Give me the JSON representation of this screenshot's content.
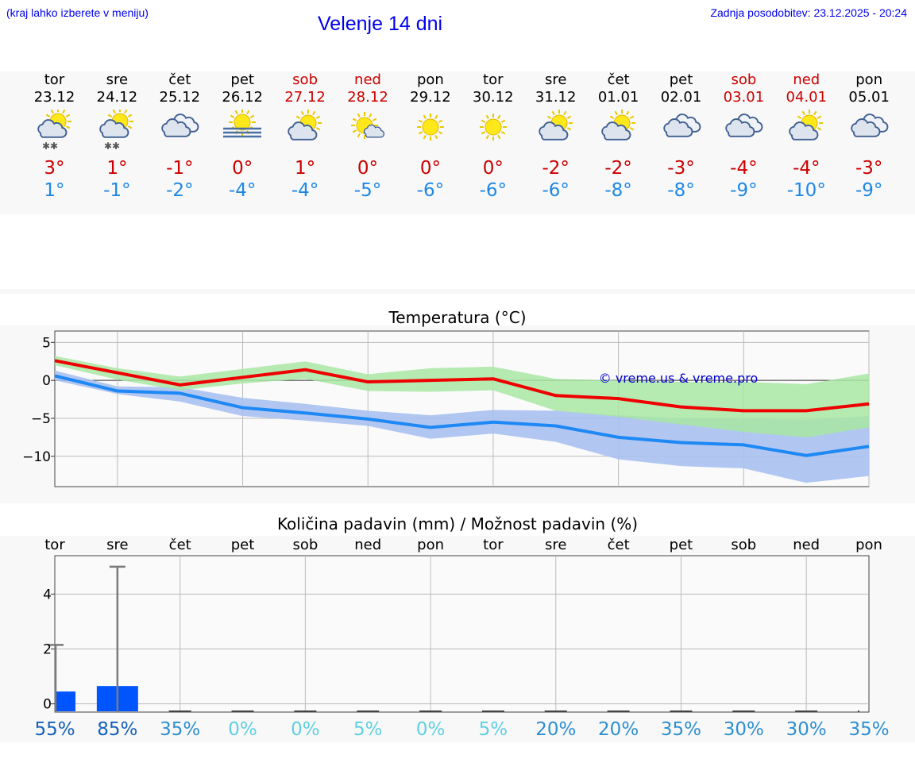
{
  "header": {
    "hint": "(kraj lahko izberete v meniju)",
    "title": "Velenje 14 dni",
    "updated": "Zadnja posodobitev: 23.12.2025 - 20:24"
  },
  "days": [
    {
      "name": "tor",
      "date": "23.12",
      "weekend": false,
      "icon": "partly-cloudy-snow-icon",
      "tmax": "3°",
      "tmin": "1°"
    },
    {
      "name": "sre",
      "date": "24.12",
      "weekend": false,
      "icon": "partly-cloudy-snow-icon",
      "tmax": "1°",
      "tmin": "-1°"
    },
    {
      "name": "čet",
      "date": "25.12",
      "weekend": false,
      "icon": "cloudy-icon",
      "tmax": "-1°",
      "tmin": "-2°"
    },
    {
      "name": "pet",
      "date": "26.12",
      "weekend": false,
      "icon": "sun-fog-icon",
      "tmax": "0°",
      "tmin": "-4°"
    },
    {
      "name": "sob",
      "date": "27.12",
      "weekend": true,
      "icon": "partly-cloudy-icon",
      "tmax": "1°",
      "tmin": "-4°"
    },
    {
      "name": "ned",
      "date": "28.12",
      "weekend": true,
      "icon": "mostly-sunny-icon",
      "tmax": "0°",
      "tmin": "-5°"
    },
    {
      "name": "pon",
      "date": "29.12",
      "weekend": false,
      "icon": "sunny-icon",
      "tmax": "0°",
      "tmin": "-6°"
    },
    {
      "name": "tor",
      "date": "30.12",
      "weekend": false,
      "icon": "sunny-icon",
      "tmax": "0°",
      "tmin": "-6°"
    },
    {
      "name": "sre",
      "date": "31.12",
      "weekend": false,
      "icon": "partly-cloudy-icon",
      "tmax": "-2°",
      "tmin": "-6°"
    },
    {
      "name": "čet",
      "date": "01.01",
      "weekend": false,
      "icon": "partly-cloudy-icon",
      "tmax": "-2°",
      "tmin": "-8°"
    },
    {
      "name": "pet",
      "date": "02.01",
      "weekend": false,
      "icon": "cloudy-icon",
      "tmax": "-3°",
      "tmin": "-8°"
    },
    {
      "name": "sob",
      "date": "03.01",
      "weekend": true,
      "icon": "cloudy-icon",
      "tmax": "-4°",
      "tmin": "-9°"
    },
    {
      "name": "ned",
      "date": "04.01",
      "weekend": true,
      "icon": "partly-cloudy-icon",
      "tmax": "-4°",
      "tmin": "-10°"
    },
    {
      "name": "pon",
      "date": "05.01",
      "weekend": false,
      "icon": "cloudy-icon",
      "tmax": "-3°",
      "tmin": "-9°"
    }
  ],
  "colors": {
    "max_line": "#ee0000",
    "max_band": "#a8e6a3",
    "min_line": "#1e88f5",
    "min_band": "#a9c1f0",
    "bar": "#0055ff",
    "whisker": "#7a7a7a",
    "watermark": "#0000cc"
  },
  "chart_data": [
    {
      "type": "line",
      "title": "Temperatura (°C)",
      "watermark": "© vreme.us & vreme.pro",
      "x": [
        0,
        1,
        2,
        3,
        4,
        5,
        6,
        7,
        8,
        9,
        10,
        11,
        12,
        13
      ],
      "ylim": [
        -14,
        6.5
      ],
      "yticks": [
        5,
        0,
        -5,
        -10
      ],
      "ytick_labels": [
        "5",
        "0",
        "−5",
        "−10"
      ],
      "series": [
        {
          "name": "max",
          "values": [
            2.6,
            1.0,
            -0.6,
            0.4,
            1.4,
            -0.2,
            0.0,
            0.2,
            -2.0,
            -2.4,
            -3.5,
            -4.0,
            -4.0,
            -3.1
          ],
          "band_high": [
            3.2,
            1.6,
            0.5,
            1.5,
            2.5,
            0.8,
            1.6,
            1.8,
            0.2,
            0.0,
            -0.2,
            -0.2,
            -0.5,
            0.9
          ],
          "band_low": [
            2.0,
            0.1,
            -1.3,
            -0.4,
            0.2,
            -1.4,
            -1.5,
            -1.3,
            -4.0,
            -4.8,
            -5.8,
            -6.8,
            -7.5,
            -6.2
          ]
        },
        {
          "name": "min",
          "values": [
            0.6,
            -1.4,
            -1.7,
            -3.6,
            -4.3,
            -5.1,
            -6.2,
            -5.5,
            -6.0,
            -7.5,
            -8.2,
            -8.5,
            -9.9,
            -8.7
          ],
          "band_high": [
            1.3,
            -0.8,
            -0.9,
            -2.3,
            -3.1,
            -4.0,
            -4.6,
            -3.9,
            -4.0,
            -4.6,
            -5.0,
            -5.0,
            -5.2,
            -4.7
          ],
          "band_low": [
            0.0,
            -1.8,
            -2.8,
            -4.7,
            -5.3,
            -6.0,
            -7.7,
            -7.0,
            -8.1,
            -10.4,
            -11.3,
            -11.6,
            -13.5,
            -12.6
          ]
        }
      ]
    },
    {
      "type": "bar",
      "title": "Količina padavin (mm) / Možnost padavin (%)",
      "categories": [
        "tor",
        "sre",
        "čet",
        "pet",
        "sob",
        "ned",
        "pon",
        "tor",
        "sre",
        "čet",
        "pet",
        "sob",
        "ned",
        "pon"
      ],
      "values": [
        0.45,
        0.65,
        0,
        0,
        0,
        0,
        0,
        0,
        0,
        0,
        0,
        0,
        0,
        0
      ],
      "whisker_max": [
        2.15,
        5.0,
        0,
        0,
        0,
        0,
        0,
        0,
        0,
        0,
        0,
        0,
        0,
        0
      ],
      "ylim": [
        -0.3,
        5.4
      ],
      "yticks": [
        0,
        2,
        4
      ],
      "probability": [
        "55%",
        "85%",
        "35%",
        "0%",
        "0%",
        "5%",
        "0%",
        "5%",
        "20%",
        "20%",
        "35%",
        "30%",
        "30%",
        "35%"
      ],
      "probability_values": [
        55,
        85,
        35,
        0,
        0,
        5,
        0,
        5,
        20,
        20,
        35,
        30,
        30,
        35
      ]
    }
  ]
}
